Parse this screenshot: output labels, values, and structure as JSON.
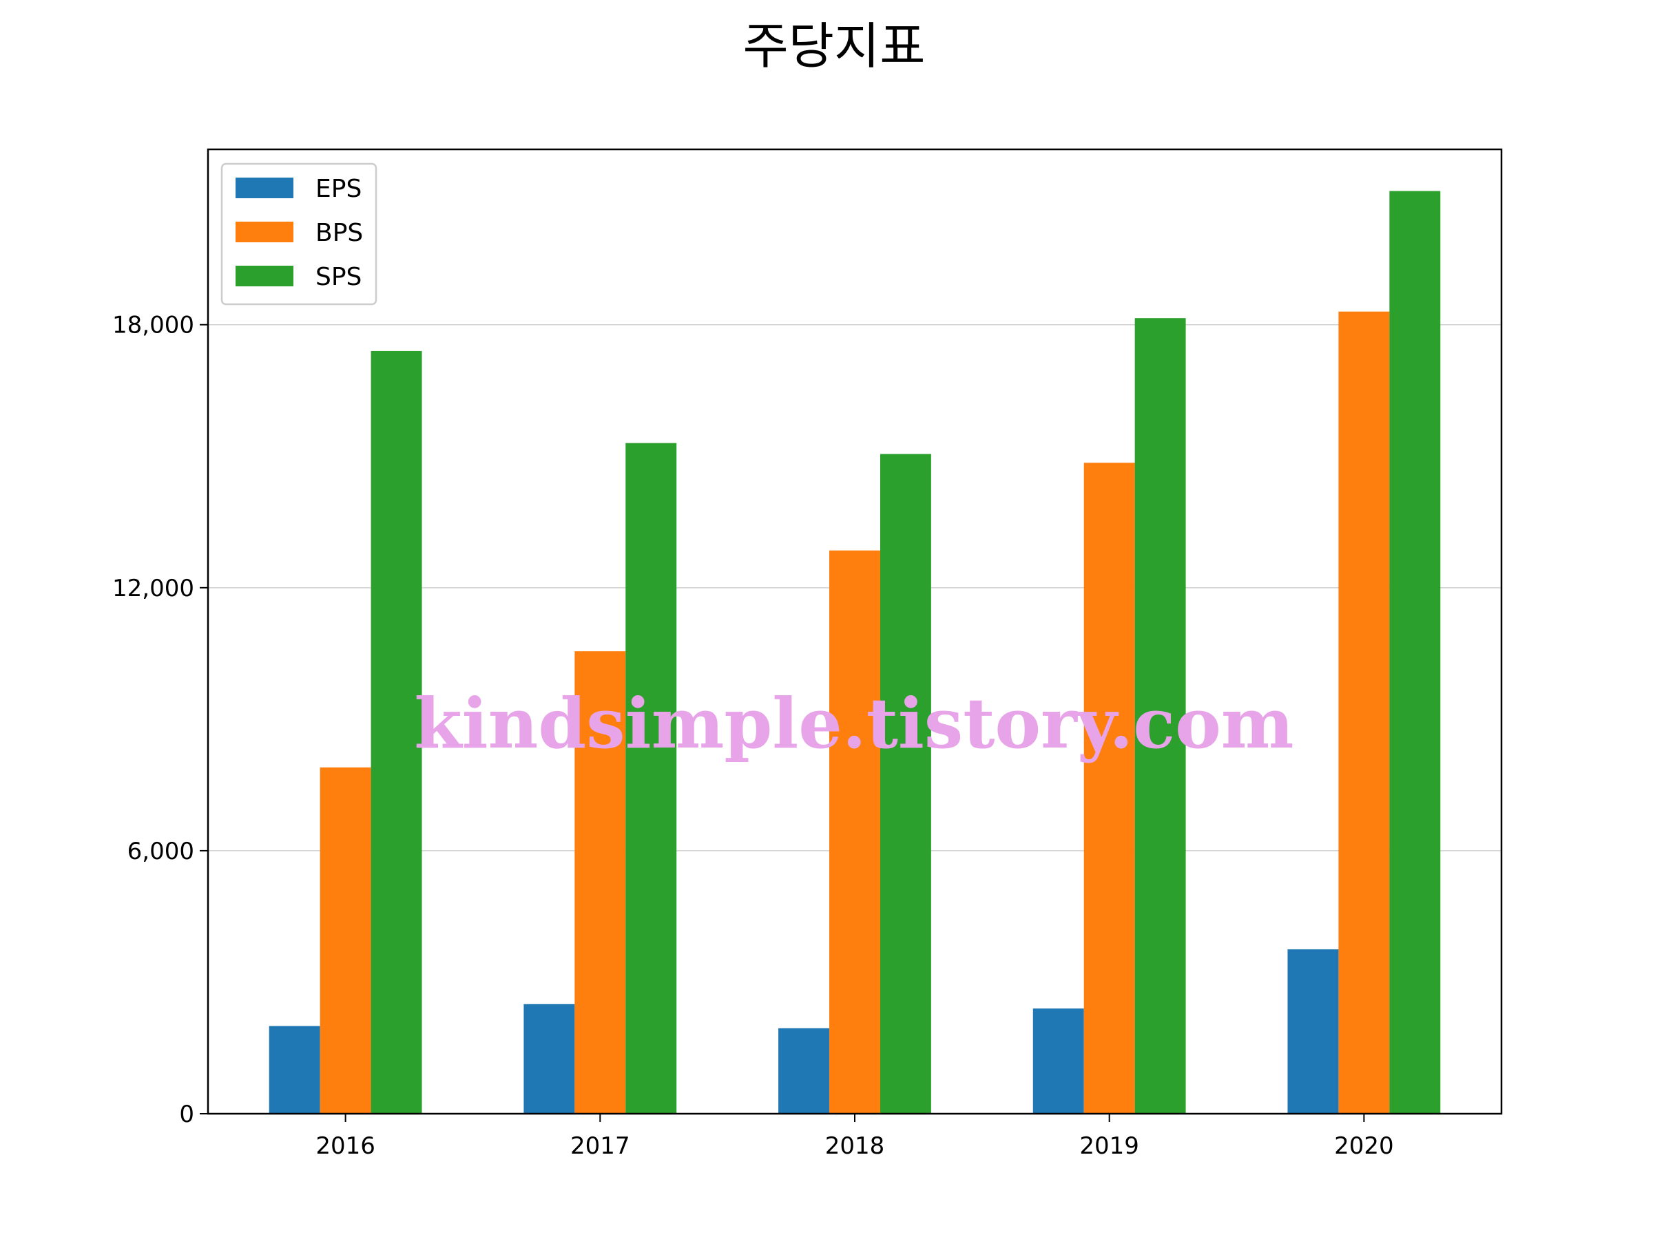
{
  "chart_data": {
    "type": "bar",
    "title": "주당지표",
    "xlabel": "",
    "ylabel": "",
    "categories": [
      "2016",
      "2017",
      "2018",
      "2019",
      "2020"
    ],
    "series": [
      {
        "name": "EPS",
        "color": "#1f77b4",
        "values": [
          2000,
          2500,
          1950,
          2400,
          3750
        ]
      },
      {
        "name": "BPS",
        "color": "#ff7f0e",
        "values": [
          7900,
          10550,
          12850,
          14850,
          18300
        ]
      },
      {
        "name": "SPS",
        "color": "#2ca02c",
        "values": [
          17400,
          15300,
          15050,
          18150,
          21050
        ]
      }
    ],
    "ylim": [
      0,
      22000
    ],
    "yticks": [
      0,
      6000,
      12000,
      18000
    ],
    "ytick_labels": [
      "0",
      "6,000",
      "12,000",
      "18,000"
    ],
    "grid": "y-major",
    "legend_position": "upper left",
    "watermark": "kindsimple.tistory.com"
  }
}
